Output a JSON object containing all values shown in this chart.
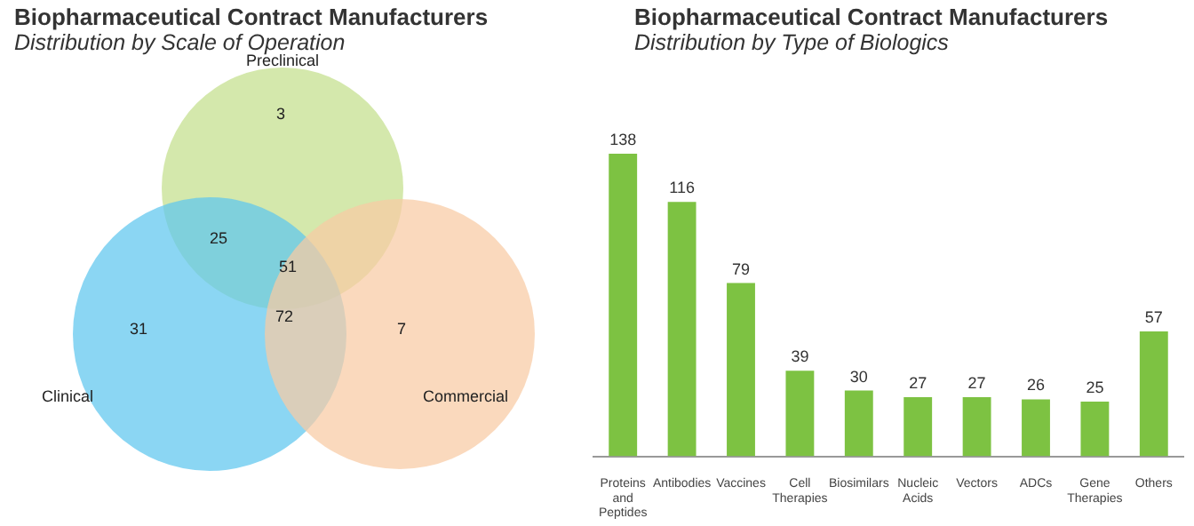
{
  "chart_data": [
    {
      "type": "other",
      "title": "Biopharmaceutical Contract Manufacturers",
      "subtitle": "Distribution by Scale of Operation",
      "categories": [
        "Preclinical",
        "Clinical",
        "Commercial"
      ],
      "colors": [
        "#c3df8c",
        "#5ec6ef",
        "#f8cba4"
      ],
      "annotations": [
        "3",
        "31",
        "7",
        "25",
        "72",
        "51"
      ]
    },
    {
      "type": "bar",
      "title": "Biopharmaceutical Contract Manufacturers",
      "subtitle": "Distribution by Type of Biologics",
      "categories": [
        "Proteins and Peptides",
        "Antibodies",
        "Vaccines",
        "Cell Therapies",
        "Biosimilars",
        "Nucleic Acids",
        "Vectors",
        "ADCs",
        "Gene Therapies",
        "Others"
      ],
      "values": [
        138,
        116,
        79,
        39,
        30,
        27,
        27,
        26,
        25,
        57
      ],
      "color": "#7dc242",
      "data_labels": true
    }
  ]
}
